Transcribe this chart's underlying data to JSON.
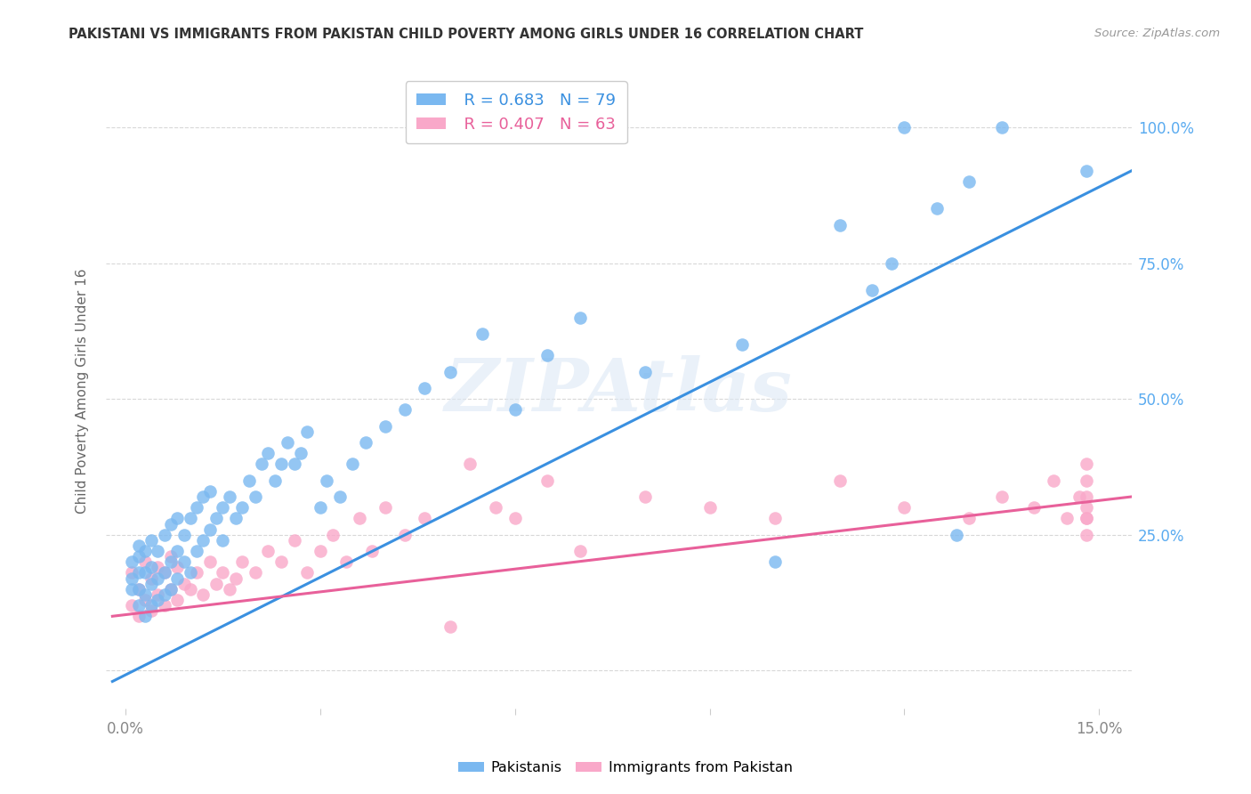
{
  "title": "PAKISTANI VS IMMIGRANTS FROM PAKISTAN CHILD POVERTY AMONG GIRLS UNDER 16 CORRELATION CHART",
  "source": "Source: ZipAtlas.com",
  "ylabel": "Child Poverty Among Girls Under 16",
  "pakistani_color": "#7ab8f0",
  "immigrant_color": "#f9a8c9",
  "trend_pakistani_color": "#3a90e0",
  "trend_immigrant_color": "#e8609a",
  "watermark_color": "#e8eef5",
  "legend_r_pakistani": "R = 0.683",
  "legend_n_pakistani": "N = 79",
  "legend_r_immigrant": "R = 0.407",
  "legend_n_immigrant": "N = 63",
  "legend_text_color_pak": "#3a90e0",
  "legend_text_color_imm": "#e8609a",
  "right_axis_color": "#5aabf0",
  "pakistani_pts_x": [
    0.001,
    0.001,
    0.001,
    0.002,
    0.002,
    0.002,
    0.002,
    0.002,
    0.003,
    0.003,
    0.003,
    0.003,
    0.004,
    0.004,
    0.004,
    0.004,
    0.005,
    0.005,
    0.005,
    0.006,
    0.006,
    0.006,
    0.007,
    0.007,
    0.007,
    0.008,
    0.008,
    0.008,
    0.009,
    0.009,
    0.01,
    0.01,
    0.011,
    0.011,
    0.012,
    0.012,
    0.013,
    0.013,
    0.014,
    0.015,
    0.015,
    0.016,
    0.017,
    0.018,
    0.019,
    0.02,
    0.021,
    0.022,
    0.023,
    0.024,
    0.025,
    0.026,
    0.027,
    0.028,
    0.03,
    0.031,
    0.033,
    0.035,
    0.037,
    0.04,
    0.043,
    0.046,
    0.05,
    0.055,
    0.06,
    0.065,
    0.07,
    0.08,
    0.095,
    0.1,
    0.11,
    0.115,
    0.118,
    0.12,
    0.125,
    0.128,
    0.13,
    0.135,
    0.148
  ],
  "pakistani_pts_y": [
    0.15,
    0.17,
    0.2,
    0.12,
    0.15,
    0.18,
    0.21,
    0.23,
    0.1,
    0.14,
    0.18,
    0.22,
    0.12,
    0.16,
    0.19,
    0.24,
    0.13,
    0.17,
    0.22,
    0.14,
    0.18,
    0.25,
    0.15,
    0.2,
    0.27,
    0.17,
    0.22,
    0.28,
    0.2,
    0.25,
    0.18,
    0.28,
    0.22,
    0.3,
    0.24,
    0.32,
    0.26,
    0.33,
    0.28,
    0.24,
    0.3,
    0.32,
    0.28,
    0.3,
    0.35,
    0.32,
    0.38,
    0.4,
    0.35,
    0.38,
    0.42,
    0.38,
    0.4,
    0.44,
    0.3,
    0.35,
    0.32,
    0.38,
    0.42,
    0.45,
    0.48,
    0.52,
    0.55,
    0.62,
    0.48,
    0.58,
    0.65,
    0.55,
    0.6,
    0.2,
    0.82,
    0.7,
    0.75,
    1.0,
    0.85,
    0.25,
    0.9,
    1.0,
    0.92
  ],
  "immigrant_pts_x": [
    0.001,
    0.001,
    0.002,
    0.002,
    0.003,
    0.003,
    0.004,
    0.004,
    0.005,
    0.005,
    0.006,
    0.006,
    0.007,
    0.007,
    0.008,
    0.008,
    0.009,
    0.01,
    0.011,
    0.012,
    0.013,
    0.014,
    0.015,
    0.016,
    0.017,
    0.018,
    0.02,
    0.022,
    0.024,
    0.026,
    0.028,
    0.03,
    0.032,
    0.034,
    0.036,
    0.038,
    0.04,
    0.043,
    0.046,
    0.05,
    0.053,
    0.057,
    0.06,
    0.065,
    0.07,
    0.08,
    0.09,
    0.1,
    0.11,
    0.12,
    0.13,
    0.135,
    0.14,
    0.143,
    0.145,
    0.147,
    0.148,
    0.148,
    0.148,
    0.148,
    0.148,
    0.148,
    0.148
  ],
  "immigrant_pts_y": [
    0.12,
    0.18,
    0.1,
    0.15,
    0.13,
    0.2,
    0.11,
    0.17,
    0.14,
    0.19,
    0.12,
    0.18,
    0.15,
    0.21,
    0.13,
    0.19,
    0.16,
    0.15,
    0.18,
    0.14,
    0.2,
    0.16,
    0.18,
    0.15,
    0.17,
    0.2,
    0.18,
    0.22,
    0.2,
    0.24,
    0.18,
    0.22,
    0.25,
    0.2,
    0.28,
    0.22,
    0.3,
    0.25,
    0.28,
    0.08,
    0.38,
    0.3,
    0.28,
    0.35,
    0.22,
    0.32,
    0.3,
    0.28,
    0.35,
    0.3,
    0.28,
    0.32,
    0.3,
    0.35,
    0.28,
    0.32,
    0.38,
    0.25,
    0.3,
    0.28,
    0.32,
    0.35,
    0.28
  ],
  "pak_trend_x": [
    -0.002,
    0.155
  ],
  "pak_trend_y": [
    -0.02,
    0.92
  ],
  "imm_trend_x": [
    -0.002,
    0.155
  ],
  "imm_trend_y": [
    0.1,
    0.32
  ],
  "xlim": [
    -0.003,
    0.155
  ],
  "ylim": [
    -0.07,
    1.1
  ],
  "x_tick_positions": [
    0.0,
    0.03,
    0.06,
    0.09,
    0.12,
    0.15
  ],
  "y_tick_positions": [
    0.0,
    0.25,
    0.5,
    0.75,
    1.0
  ],
  "grid_color": "#d8d8d8",
  "tick_color": "#888888",
  "title_color": "#333333",
  "source_color": "#999999",
  "bg_color": "#ffffff"
}
